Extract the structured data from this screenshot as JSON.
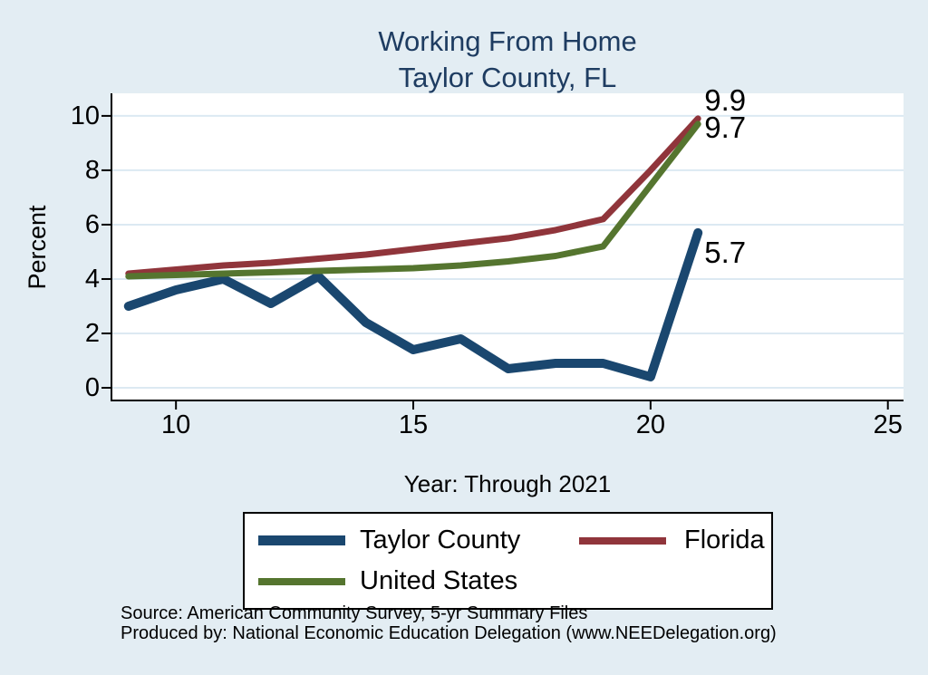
{
  "colors": {
    "background": "#e3edf3",
    "plot_background": "#ffffff",
    "gridline": "#dce9f2",
    "axis": "#000000",
    "title_text": "#1e3c61",
    "taylor_county": "#1a476f",
    "florida": "#90353b",
    "united_states": "#55752f"
  },
  "chart_data": {
    "type": "line",
    "title": "Working From Home",
    "subtitle": "Taylor County, FL",
    "xlabel": "Year: Through 2021",
    "ylabel": "Percent",
    "x": [
      9,
      10,
      11,
      12,
      13,
      14,
      15,
      16,
      17,
      18,
      19,
      20,
      21
    ],
    "xticks": [
      10,
      15,
      20,
      25
    ],
    "yticks": [
      0,
      2,
      4,
      6,
      8,
      10
    ],
    "x_range": [
      8.66,
      25.33
    ],
    "y_range": [
      -0.5,
      10.83
    ],
    "grid": true,
    "legend_position": "bottom",
    "series": [
      {
        "name": "Taylor County",
        "color": "#1a476f",
        "line_width": 10,
        "swatch_height": 11,
        "values": [
          3.0,
          3.6,
          4.0,
          3.1,
          4.1,
          2.4,
          1.4,
          1.8,
          0.7,
          0.9,
          0.9,
          0.4,
          5.7
        ],
        "end_label": "5.7",
        "end_label_dy": 22
      },
      {
        "name": "Florida",
        "color": "#90353b",
        "line_width": 7,
        "swatch_height": 8,
        "values": [
          4.2,
          4.35,
          4.5,
          4.6,
          4.75,
          4.9,
          5.1,
          5.3,
          5.5,
          5.8,
          6.2,
          8.0,
          9.9
        ],
        "end_label": "9.9",
        "end_label_dy": -20
      },
      {
        "name": "United States",
        "color": "#55752f",
        "line_width": 7,
        "swatch_height": 8,
        "values": [
          4.1,
          4.15,
          4.2,
          4.25,
          4.3,
          4.35,
          4.4,
          4.5,
          4.65,
          4.85,
          5.2,
          7.45,
          9.7
        ],
        "end_label": "9.7",
        "end_label_dy": 4
      }
    ]
  },
  "source": {
    "line1": "Source: American Community Survey, 5-yr Summary Files",
    "line2": "Produced by: National Economic Education Delegation (www.NEEDelegation.org)"
  }
}
